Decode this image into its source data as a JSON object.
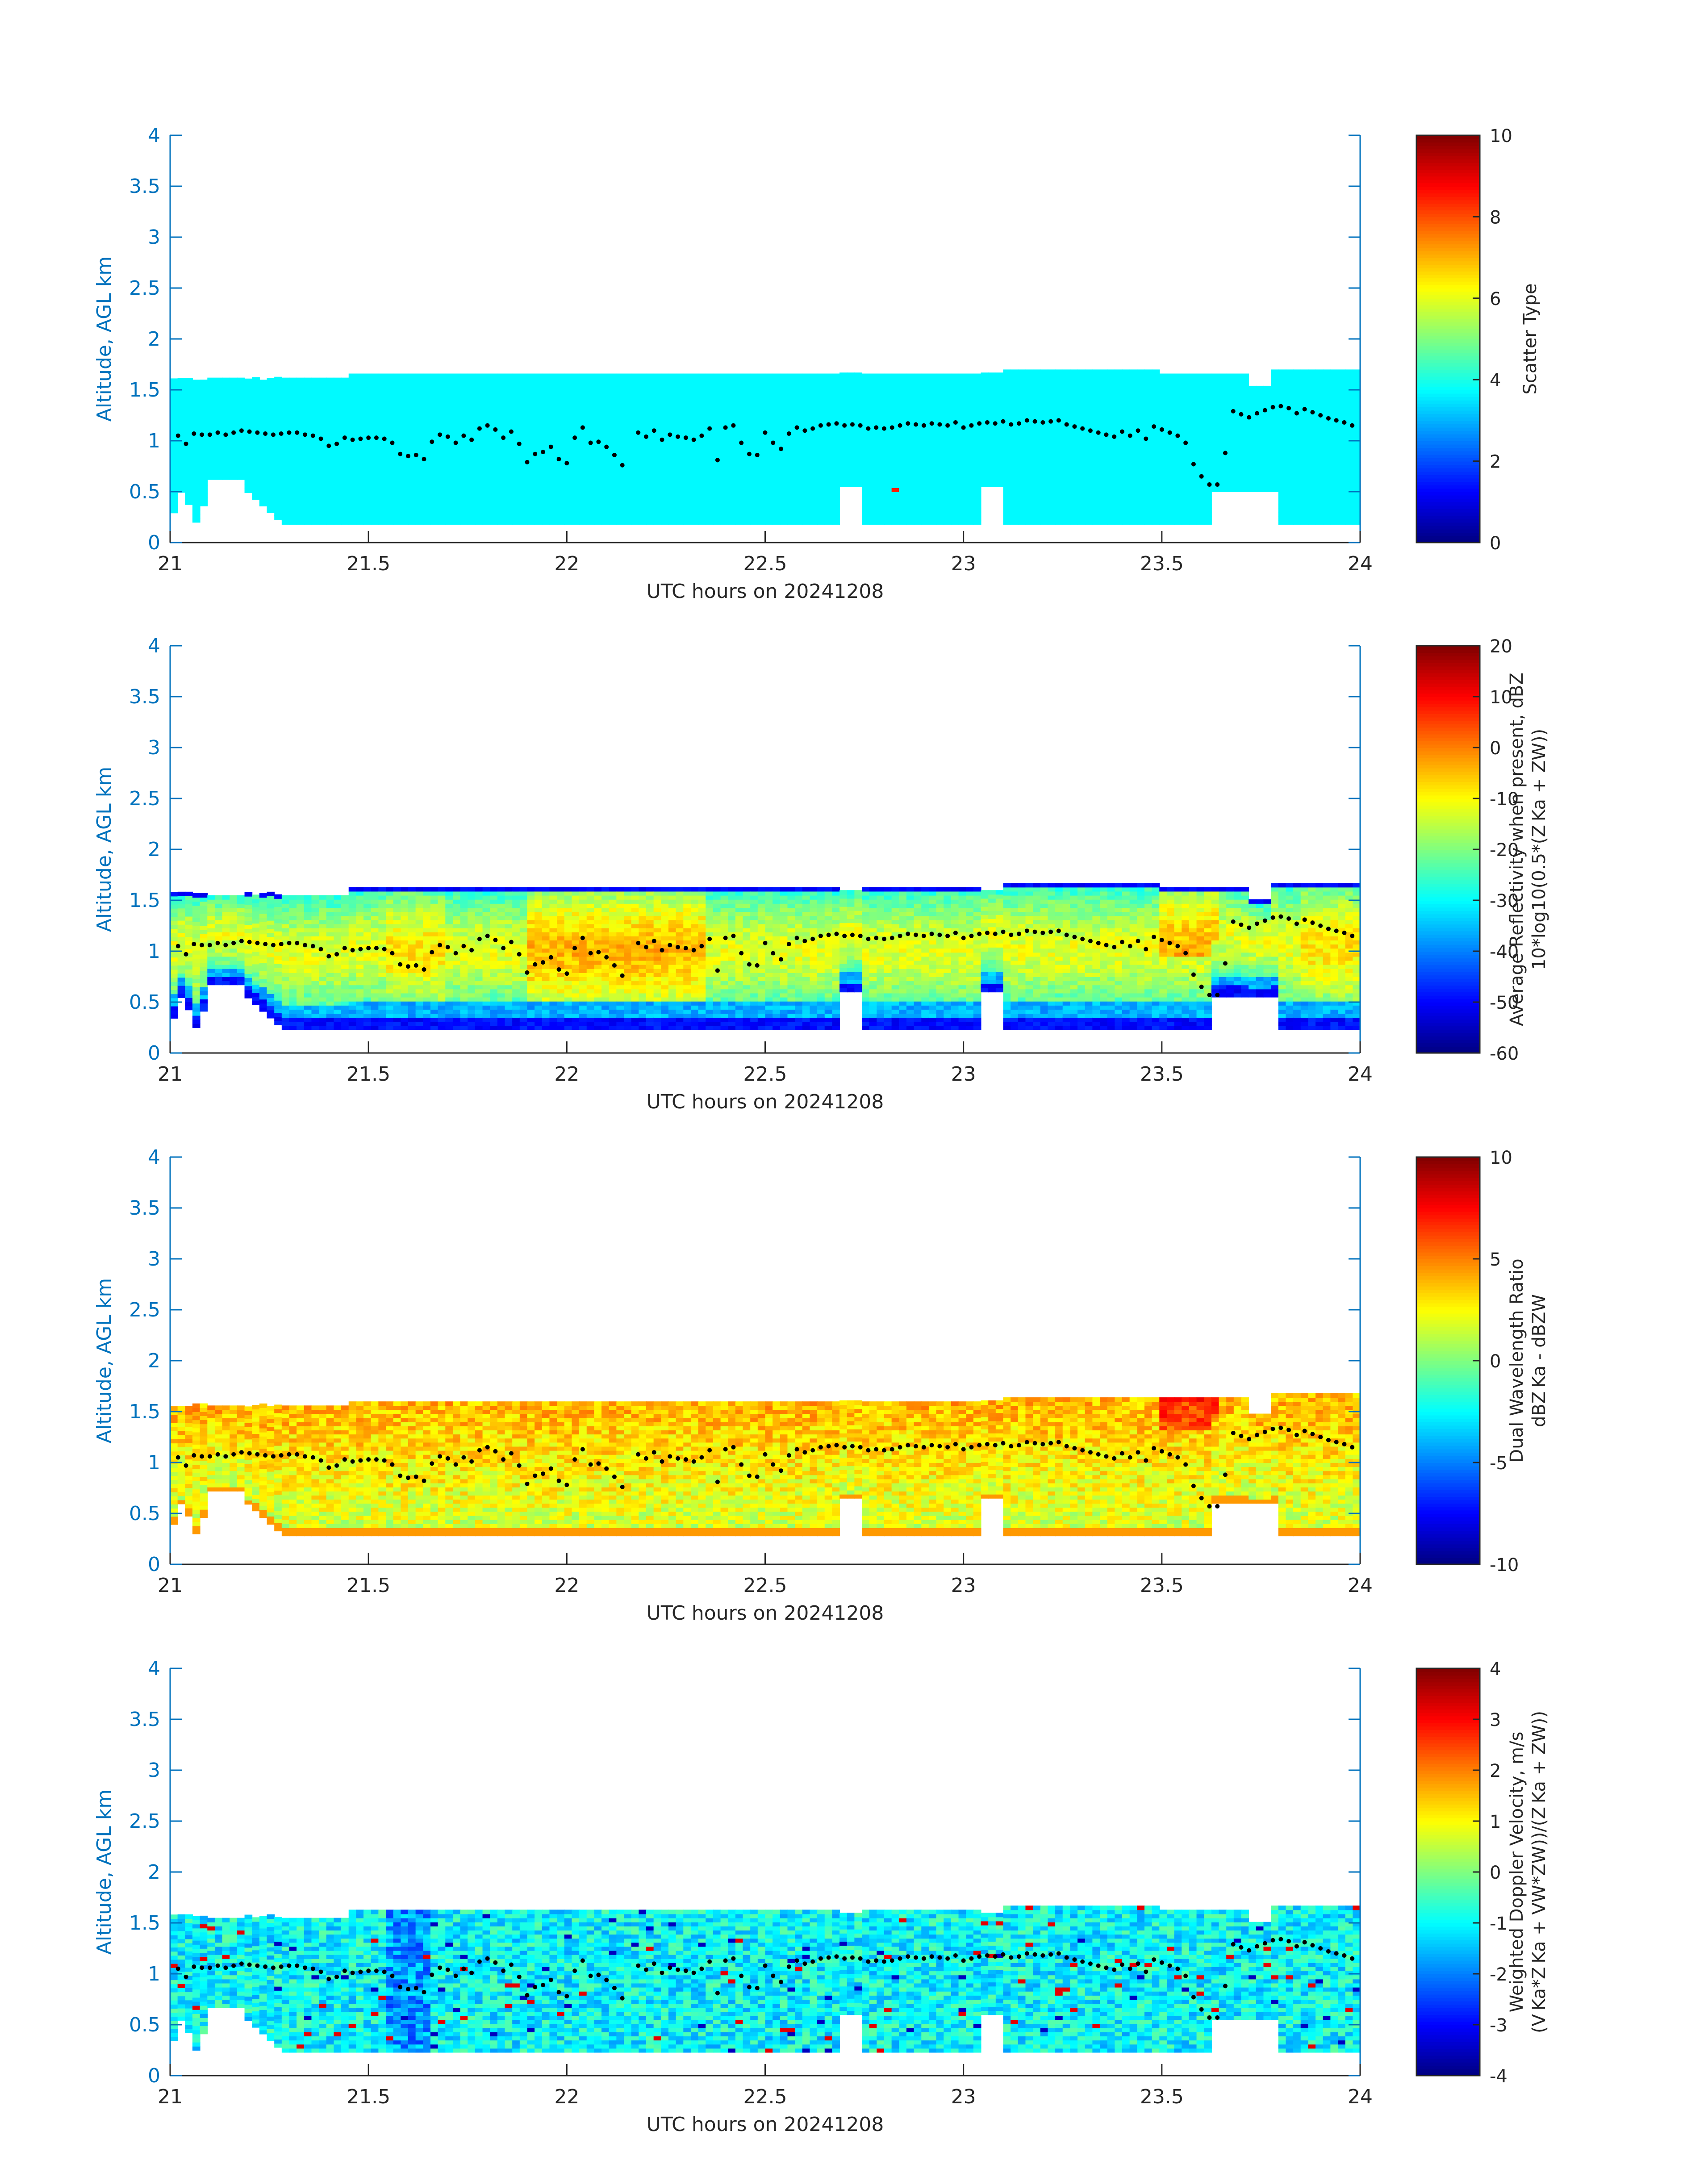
{
  "figure": {
    "axis_color": "#0072bd",
    "line_color": "#0072bd",
    "title": ""
  },
  "chart_data": [
    {
      "type": "heatmap",
      "title": "",
      "xlabel": "UTC hours on 20241208",
      "ylabel": "Altitude, AGL km",
      "xlim": [
        21,
        24
      ],
      "ylim": [
        0,
        4
      ],
      "x_ticks": [
        "21",
        "21.5",
        "22",
        "22.5",
        "23",
        "23.5",
        "24"
      ],
      "y_ticks": [
        "0",
        "0.5",
        "1",
        "1.5",
        "2",
        "2.5",
        "3",
        "3.5",
        "4"
      ],
      "colorbar_label": [
        "Scatter Type"
      ],
      "colorbar_ticks": [
        "0",
        "2",
        "4",
        "6",
        "8",
        "10"
      ],
      "clim": [
        0,
        10
      ],
      "colormap": "jet",
      "field": "scatter_type",
      "cloud_base_km": [
        0.3,
        0.15
      ],
      "typical_value": 3.7,
      "cloud_top_km": [
        1.55,
        1.65
      ]
    },
    {
      "type": "heatmap",
      "title": "",
      "xlabel": "UTC hours on 20241208",
      "ylabel": "Altitude, AGL km",
      "xlim": [
        21,
        24
      ],
      "ylim": [
        0,
        4
      ],
      "x_ticks": [
        "21",
        "21.5",
        "22",
        "22.5",
        "23",
        "23.5",
        "24"
      ],
      "y_ticks": [
        "0",
        "0.5",
        "1",
        "1.5",
        "2",
        "2.5",
        "3",
        "3.5",
        "4"
      ],
      "colorbar_label": [
        "Average Reflectivity when present, dBZ",
        "10*log10(0.5*(Z_Ka + Z_W))"
      ],
      "colorbar_ticks": [
        "-60",
        "-50",
        "-40",
        "-30",
        "-20",
        "-10",
        "0",
        "10",
        "20"
      ],
      "clim": [
        -60,
        20
      ],
      "colormap": "jet",
      "field": "reflectivity",
      "value_range_dbz": [
        -45,
        0
      ]
    },
    {
      "type": "heatmap",
      "title": "",
      "xlabel": "UTC hours on 20241208",
      "ylabel": "Altitude, AGL km",
      "xlim": [
        21,
        24
      ],
      "ylim": [
        0,
        4
      ],
      "x_ticks": [
        "21",
        "21.5",
        "22",
        "22.5",
        "23",
        "23.5",
        "24"
      ],
      "y_ticks": [
        "0",
        "0.5",
        "1",
        "1.5",
        "2",
        "2.5",
        "3",
        "3.5",
        "4"
      ],
      "colorbar_label": [
        "Dual Wavelength Ratio",
        "dBZ_Ka - dBZ_W"
      ],
      "colorbar_ticks": [
        "-10",
        "-5",
        "0",
        "5",
        "10"
      ],
      "clim": [
        -10,
        10
      ],
      "colormap": "jet",
      "field": "dwr",
      "value_range_db": [
        0,
        6
      ]
    },
    {
      "type": "heatmap",
      "title": "",
      "xlabel": "UTC hours on 20241208",
      "ylabel": "Altitude, AGL km",
      "xlim": [
        21,
        24
      ],
      "ylim": [
        0,
        4
      ],
      "x_ticks": [
        "21",
        "21.5",
        "22",
        "22.5",
        "23",
        "23.5",
        "24"
      ],
      "y_ticks": [
        "0",
        "0.5",
        "1",
        "1.5",
        "2",
        "2.5",
        "3",
        "3.5",
        "4"
      ],
      "colorbar_label": [
        "Weighted Doppler Velocity, m/s",
        "(V_Ka*Z_Ka + V_W*Z_W))/(Z_Ka + Z_W))"
      ],
      "colorbar_ticks": [
        "-4",
        "-3",
        "-2",
        "-1",
        "0",
        "1",
        "2",
        "3",
        "4"
      ],
      "clim": [
        -4,
        4
      ],
      "colormap": "jet",
      "field": "doppler_velocity",
      "value_range_ms": [
        -2.5,
        0.5
      ]
    }
  ],
  "cloud_base_line": {
    "description_marker": "black dots",
    "times_h": [
      21.02,
      21.04,
      21.06,
      21.08,
      21.1,
      21.12,
      21.14,
      21.16,
      21.18,
      21.2,
      21.22,
      21.24,
      21.26,
      21.28,
      21.3,
      21.32,
      21.34,
      21.36,
      21.38,
      21.4,
      21.42,
      21.44,
      21.46,
      21.48,
      21.5,
      21.52,
      21.54,
      21.56,
      21.58,
      21.6,
      21.62,
      21.64,
      21.66,
      21.68,
      21.7,
      21.72,
      21.74,
      21.76,
      21.78,
      21.8,
      21.82,
      21.84,
      21.86,
      21.88,
      21.9,
      21.92,
      21.94,
      21.96,
      21.98,
      22.0,
      22.02,
      22.04,
      22.06,
      22.08,
      22.1,
      22.12,
      22.14,
      22.18,
      22.2,
      22.22,
      22.24,
      22.26,
      22.28,
      22.3,
      22.32,
      22.34,
      22.36,
      22.38,
      22.4,
      22.42,
      22.44,
      22.46,
      22.48,
      22.5,
      22.52,
      22.54,
      22.56,
      22.58,
      22.6,
      22.62,
      22.64,
      22.66,
      22.68,
      22.7,
      22.72,
      22.74,
      22.76,
      22.78,
      22.8,
      22.82,
      22.84,
      22.86,
      22.88,
      22.9,
      22.92,
      22.94,
      22.96,
      22.98,
      23.0,
      23.02,
      23.04,
      23.06,
      23.08,
      23.1,
      23.12,
      23.14,
      23.16,
      23.18,
      23.2,
      23.22,
      23.24,
      23.26,
      23.28,
      23.3,
      23.32,
      23.34,
      23.36,
      23.38,
      23.4,
      23.42,
      23.44,
      23.46,
      23.48,
      23.5,
      23.52,
      23.54,
      23.56,
      23.58,
      23.6,
      23.62,
      23.64,
      23.66,
      23.68,
      23.7,
      23.72,
      23.74,
      23.76,
      23.78,
      23.8,
      23.82,
      23.84,
      23.86,
      23.88,
      23.9,
      23.92,
      23.94,
      23.96,
      23.98
    ],
    "heights_km": [
      1.05,
      0.97,
      1.07,
      1.06,
      1.06,
      1.08,
      1.06,
      1.08,
      1.1,
      1.09,
      1.08,
      1.07,
      1.06,
      1.07,
      1.08,
      1.08,
      1.06,
      1.05,
      1.02,
      0.95,
      0.97,
      1.03,
      1.01,
      1.02,
      1.03,
      1.03,
      1.02,
      0.98,
      0.87,
      0.85,
      0.86,
      0.82,
      0.99,
      1.06,
      1.04,
      0.98,
      1.05,
      1.01,
      1.12,
      1.15,
      1.11,
      1.03,
      1.09,
      0.97,
      0.79,
      0.87,
      0.89,
      0.94,
      0.82,
      0.78,
      1.03,
      1.13,
      0.98,
      0.99,
      0.94,
      0.86,
      0.76,
      1.08,
      1.04,
      1.1,
      1.01,
      1.06,
      1.04,
      1.03,
      1.01,
      1.05,
      1.12,
      0.81,
      1.13,
      1.15,
      0.98,
      0.87,
      0.86,
      1.08,
      0.98,
      0.92,
      1.07,
      1.13,
      1.1,
      1.12,
      1.15,
      1.16,
      1.17,
      1.15,
      1.16,
      1.15,
      1.12,
      1.13,
      1.12,
      1.13,
      1.15,
      1.17,
      1.16,
      1.15,
      1.17,
      1.16,
      1.15,
      1.18,
      1.13,
      1.15,
      1.17,
      1.18,
      1.17,
      1.19,
      1.16,
      1.17,
      1.2,
      1.19,
      1.18,
      1.19,
      1.2,
      1.16,
      1.14,
      1.12,
      1.1,
      1.08,
      1.06,
      1.04,
      1.09,
      1.05,
      1.1,
      1.02,
      1.14,
      1.11,
      1.08,
      1.05,
      0.98,
      0.77,
      0.65,
      0.57,
      0.57,
      0.88,
      1.29,
      1.26,
      1.23,
      1.27,
      1.3,
      1.33,
      1.34,
      1.32,
      1.27,
      1.31,
      1.28,
      1.25,
      1.22,
      1.2,
      1.18,
      1.15
    ]
  }
}
